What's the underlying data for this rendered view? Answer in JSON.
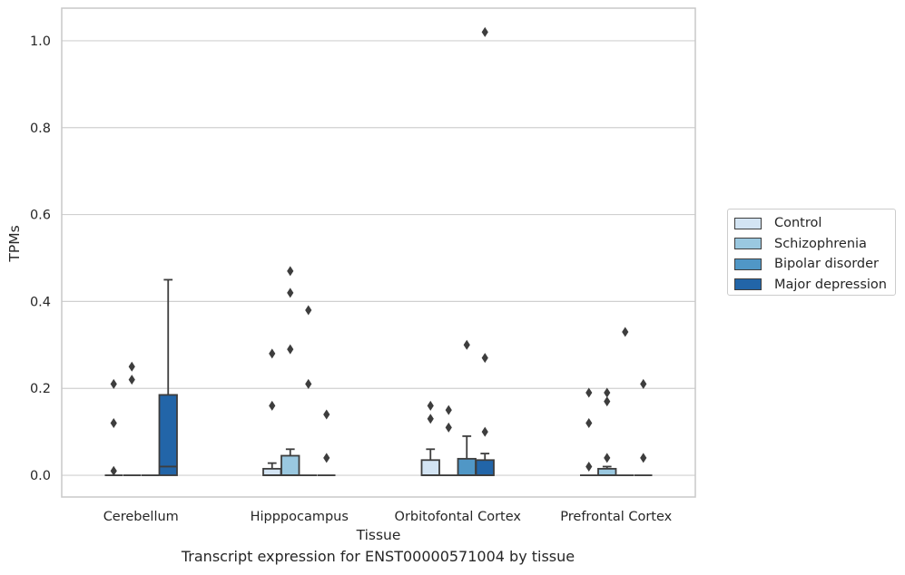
{
  "caption": "Transcript expression for ENST00000571004 by tissue",
  "chart_data": {
    "type": "box",
    "title": "",
    "xlabel": "Tissue",
    "ylabel": "TPMs",
    "ylim": [
      -0.05,
      1.075
    ],
    "yticks": [
      0.0,
      0.2,
      0.4,
      0.6,
      0.8,
      1.0
    ],
    "ytick_labels": [
      "0.0",
      "0.2",
      "0.4",
      "0.6",
      "0.8",
      "1.0"
    ],
    "grid": "horizontal",
    "legend_position": "right",
    "categories": [
      "Cerebellum",
      "Hipppocampus",
      "Orbitofontal Cortex",
      "Prefrontal Cortex"
    ],
    "series": [
      {
        "name": "Control",
        "color": "#d3e4f3",
        "boxes": [
          {
            "q1": 0,
            "median": 0,
            "q3": 0,
            "whisker_low": 0,
            "whisker_high": 0,
            "outliers": [
              0.21,
              0.12,
              0.01
            ]
          },
          {
            "q1": 0,
            "median": 0,
            "q3": 0.015,
            "whisker_low": 0,
            "whisker_high": 0.028,
            "outliers": [
              0.28,
              0.16
            ]
          },
          {
            "q1": 0,
            "median": 0,
            "q3": 0.035,
            "whisker_low": 0,
            "whisker_high": 0.06,
            "outliers": [
              0.16,
              0.13
            ]
          },
          {
            "q1": 0,
            "median": 0,
            "q3": 0,
            "whisker_low": 0,
            "whisker_high": 0,
            "outliers": [
              0.19,
              0.12,
              0.02
            ]
          }
        ]
      },
      {
        "name": "Schizophrenia",
        "color": "#9ac8e0",
        "boxes": [
          {
            "q1": 0,
            "median": 0,
            "q3": 0,
            "whisker_low": 0,
            "whisker_high": 0,
            "outliers": [
              0.25,
              0.22
            ]
          },
          {
            "q1": 0,
            "median": 0,
            "q3": 0.045,
            "whisker_low": 0,
            "whisker_high": 0.06,
            "outliers": [
              0.47,
              0.42,
              0.29
            ]
          },
          {
            "q1": 0,
            "median": 0,
            "q3": 0,
            "whisker_low": 0,
            "whisker_high": 0,
            "outliers": [
              0.15,
              0.11
            ]
          },
          {
            "q1": 0,
            "median": 0,
            "q3": 0.015,
            "whisker_low": 0,
            "whisker_high": 0.02,
            "outliers": [
              0.19,
              0.17,
              0.04
            ]
          }
        ]
      },
      {
        "name": "Bipolar disorder",
        "color": "#5097c6",
        "boxes": [
          {
            "q1": 0,
            "median": 0,
            "q3": 0,
            "whisker_low": 0,
            "whisker_high": 0,
            "outliers": []
          },
          {
            "q1": 0,
            "median": 0,
            "q3": 0,
            "whisker_low": 0,
            "whisker_high": 0,
            "outliers": [
              0.38,
              0.21
            ]
          },
          {
            "q1": 0,
            "median": 0,
            "q3": 0.038,
            "whisker_low": 0,
            "whisker_high": 0.09,
            "outliers": [
              0.3
            ]
          },
          {
            "q1": 0,
            "median": 0,
            "q3": 0,
            "whisker_low": 0,
            "whisker_high": 0,
            "outliers": [
              0.33
            ]
          }
        ]
      },
      {
        "name": "Major depression",
        "color": "#2265a8",
        "boxes": [
          {
            "q1": 0,
            "median": 0.02,
            "q3": 0.185,
            "whisker_low": 0,
            "whisker_high": 0.45,
            "outliers": []
          },
          {
            "q1": 0,
            "median": 0,
            "q3": 0,
            "whisker_low": 0,
            "whisker_high": 0,
            "outliers": [
              0.14,
              0.04
            ]
          },
          {
            "q1": 0,
            "median": 0,
            "q3": 0.035,
            "whisker_low": 0,
            "whisker_high": 0.05,
            "outliers": [
              1.02,
              0.27,
              0.1
            ]
          },
          {
            "q1": 0,
            "median": 0,
            "q3": 0,
            "whisker_low": 0,
            "whisker_high": 0,
            "outliers": [
              0.21,
              0.04
            ]
          }
        ]
      }
    ]
  }
}
